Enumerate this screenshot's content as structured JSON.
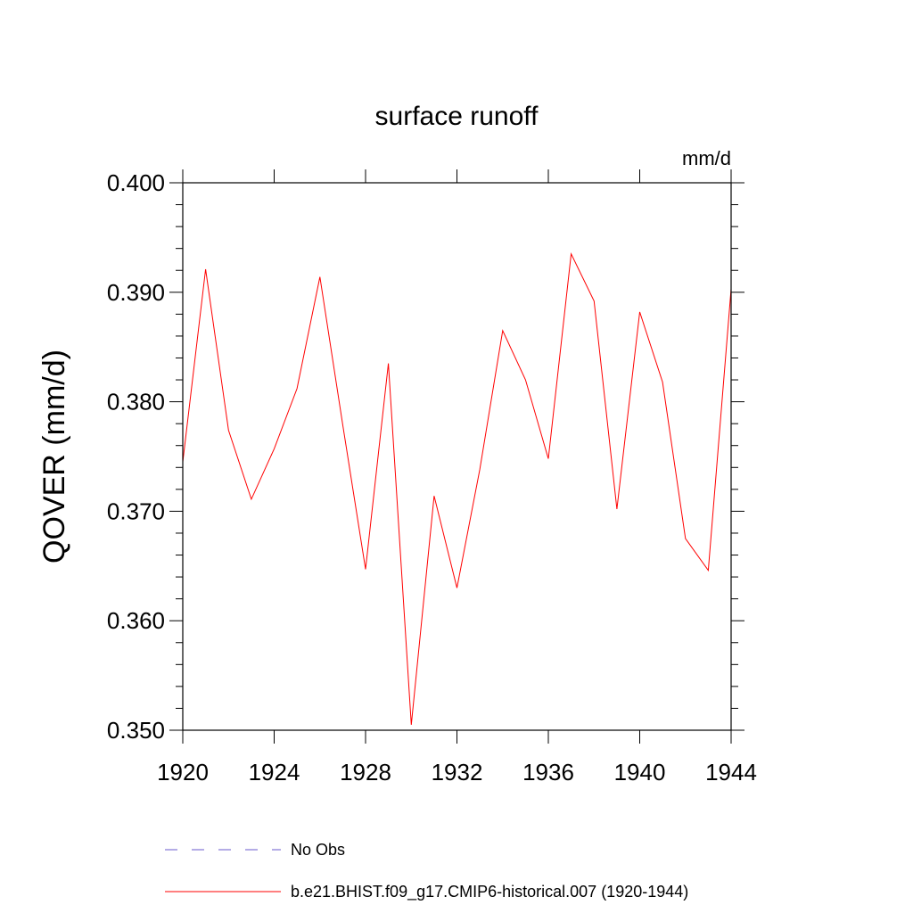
{
  "chart_data": {
    "type": "line",
    "title": "surface runoff",
    "units": "mm/d",
    "xlabel": "",
    "ylabel": "QOVER  (mm/d)",
    "xlim": [
      1920,
      1944
    ],
    "ylim": [
      0.35,
      0.4
    ],
    "x_ticks": [
      "1920",
      "1924",
      "1928",
      "1932",
      "1936",
      "1940",
      "1944"
    ],
    "y_ticks": [
      "0.350",
      "0.360",
      "0.370",
      "0.380",
      "0.390",
      "0.400"
    ],
    "grid": false,
    "legend_placement": "bottom",
    "x": [
      1920,
      1921,
      1922,
      1923,
      1924,
      1925,
      1926,
      1927,
      1928,
      1929,
      1930,
      1931,
      1932,
      1933,
      1934,
      1935,
      1936,
      1937,
      1938,
      1939,
      1940,
      1941,
      1942,
      1943,
      1944
    ],
    "series": [
      {
        "name": "b.e21.BHIST.f09_g17.CMIP6-historical.007 (1920-1944)",
        "color": "#ff0000",
        "style": "solid",
        "values": [
          0.3745,
          0.3921,
          0.3774,
          0.3711,
          0.3757,
          0.3812,
          0.3914,
          0.3779,
          0.3647,
          0.3835,
          0.3505,
          0.3714,
          0.363,
          0.3738,
          0.3865,
          0.382,
          0.3748,
          0.3935,
          0.3892,
          0.3702,
          0.3882,
          0.3818,
          0.3675,
          0.3646,
          0.3903
        ]
      }
    ],
    "legend": [
      {
        "label": "No Obs",
        "color": "#6a5acd",
        "style": "dashed"
      },
      {
        "label": "b.e21.BHIST.f09_g17.CMIP6-historical.007 (1920-1944)",
        "color": "#ff0000",
        "style": "solid"
      }
    ]
  }
}
